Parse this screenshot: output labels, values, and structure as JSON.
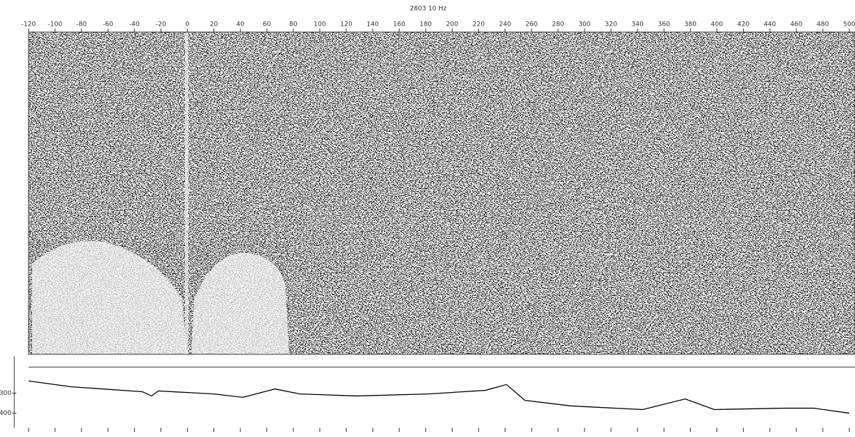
{
  "chart_data": {
    "type": "line",
    "title": "2803 10 Hz",
    "x": [
      -120,
      -88,
      -34,
      -27,
      -22,
      20,
      42,
      66,
      85,
      128,
      182,
      225,
      241,
      255,
      290,
      344,
      376,
      398,
      451,
      473,
      500
    ],
    "series": [
      {
        "color": "#000000",
        "values": [
          239,
          268,
          293,
          314,
          289,
          304,
          321,
          279,
          304,
          314,
          304,
          286,
          257,
          336,
          364,
          382,
          329,
          382,
          375,
          375,
          400
        ]
      }
    ],
    "xlim": [
      -120,
      500
    ],
    "xticks": [
      -120,
      -100,
      -80,
      -60,
      -40,
      -20,
      0,
      20,
      40,
      60,
      80,
      100,
      120,
      140,
      160,
      180,
      200,
      220,
      240,
      260,
      280,
      300,
      320,
      340,
      360,
      380,
      400,
      420,
      440,
      460,
      480,
      500
    ],
    "ylim": [
      170,
      455
    ],
    "yticks": [
      300,
      400
    ]
  }
}
